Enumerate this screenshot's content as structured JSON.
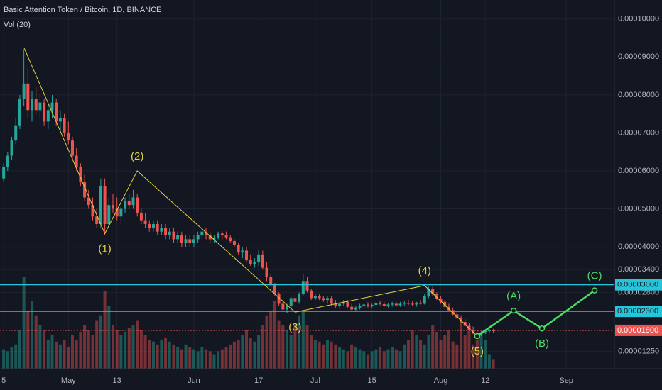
{
  "chart_data": {
    "type": "candlestick",
    "title": "Basic Attention Token / Bitcoin, 1D, BINANCE",
    "subtitle": "Vol (20)",
    "up_color": "#26a69a",
    "down_color": "#ef5350",
    "xlim": [
      -0.9,
      150.9
    ],
    "ylim": [
      7.9e-06,
      0.000105
    ],
    "grid": true,
    "xticks": [
      {
        "value": 0,
        "label": "5"
      },
      {
        "value": 16,
        "label": "May"
      },
      {
        "value": 28,
        "label": "13"
      },
      {
        "value": 47,
        "label": "Jun"
      },
      {
        "value": 63,
        "label": "17"
      },
      {
        "value": 77,
        "label": "Jul"
      },
      {
        "value": 91,
        "label": "15"
      },
      {
        "value": 108,
        "label": "Aug"
      },
      {
        "value": 119,
        "label": "12"
      },
      {
        "value": 139,
        "label": "Sep"
      }
    ],
    "yticks": [
      {
        "value": 0.0001,
        "label": "0.00010000"
      },
      {
        "value": 9e-05,
        "label": "0.00009000"
      },
      {
        "value": 8e-05,
        "label": "0.00008000"
      },
      {
        "value": 7e-05,
        "label": "0.00007000"
      },
      {
        "value": 6e-05,
        "label": "0.00006000"
      },
      {
        "value": 5e-05,
        "label": "0.00005000"
      },
      {
        "value": 4e-05,
        "label": "0.00004000"
      },
      {
        "value": 3.4e-05,
        "label": "0.00003400"
      },
      {
        "value": 2.8e-05,
        "label": "0.00002800"
      },
      {
        "value": 1.25e-05,
        "label": "0.00001250"
      }
    ],
    "hlines": [
      {
        "value": 3e-05,
        "label": "0.00003000",
        "color": "#26c6da",
        "dashed": false
      },
      {
        "value": 2.3e-05,
        "label": "0.00002300",
        "color": "#26c6da",
        "dashed": false
      },
      {
        "value": 1.8e-05,
        "label": "0.00001800",
        "color": "#ef5350",
        "dashed": true
      }
    ],
    "candles": [
      [
        5.8e-05,
        6.2e-05,
        5.7e-05,
        6.1e-05
      ],
      [
        6.1e-05,
        6.5e-05,
        6e-05,
        6.4e-05
      ],
      [
        6.4e-05,
        6.9e-05,
        6.3e-05,
        6.8e-05
      ],
      [
        6.8e-05,
        7.4e-05,
        6.7e-05,
        7.2e-05
      ],
      [
        7.2e-05,
        8e-05,
        7.1e-05,
        7.9e-05
      ],
      [
        7.9e-05,
        9.2e-05,
        7.7e-05,
        8.3e-05
      ],
      [
        8.3e-05,
        8.7e-05,
        7.4e-05,
        7.6e-05
      ],
      [
        7.6e-05,
        8.1e-05,
        7.3e-05,
        7.9e-05
      ],
      [
        7.9e-05,
        8.2e-05,
        7.5e-05,
        7.6e-05
      ],
      [
        7.6e-05,
        8e-05,
        7.4e-05,
        7.8e-05
      ],
      [
        7.8e-05,
        7.9e-05,
        7.2e-05,
        7.3e-05
      ],
      [
        7.3e-05,
        7.8e-05,
        7.1e-05,
        7.6e-05
      ],
      [
        7.6e-05,
        8e-05,
        7.4e-05,
        7.8e-05
      ],
      [
        7.8e-05,
        7.9e-05,
        7.2e-05,
        7.3e-05
      ],
      [
        7.3e-05,
        7.6e-05,
        7e-05,
        7.4e-05
      ],
      [
        7.4e-05,
        7.5e-05,
        6.9e-05,
        7e-05
      ],
      [
        7e-05,
        7.3e-05,
        6.7e-05,
        6.8e-05
      ],
      [
        6.8e-05,
        6.9e-05,
        6.3e-05,
        6.4e-05
      ],
      [
        6.4e-05,
        6.6e-05,
        6e-05,
        6.1e-05
      ],
      [
        6.1e-05,
        6.2e-05,
        5.6e-05,
        5.7e-05
      ],
      [
        5.7e-05,
        5.9e-05,
        5.2e-05,
        5.3e-05
      ],
      [
        5.3e-05,
        5.5e-05,
        5e-05,
        5.1e-05
      ],
      [
        5.1e-05,
        5.3e-05,
        4.7e-05,
        4.8e-05
      ],
      [
        4.8e-05,
        5e-05,
        4.5e-05,
        4.6e-05
      ],
      [
        4.6e-05,
        5.8e-05,
        4.5e-05,
        5.6e-05
      ],
      [
        5.6e-05,
        5.8e-05,
        4.3e-05,
        4.6e-05
      ],
      [
        4.6e-05,
        5.3e-05,
        4.5e-05,
        5.1e-05
      ],
      [
        5.1e-05,
        5.4e-05,
        4.9e-05,
        5e-05
      ],
      [
        5e-05,
        5.3e-05,
        4.7e-05,
        4.8e-05
      ],
      [
        4.8e-05,
        5.1e-05,
        4.6e-05,
        5e-05
      ],
      [
        5e-05,
        5.3e-05,
        4.9e-05,
        5.2e-05
      ],
      [
        5.2e-05,
        5.4e-05,
        5e-05,
        5.1e-05
      ],
      [
        5.1e-05,
        5.5e-05,
        5e-05,
        5.3e-05
      ],
      [
        5.3e-05,
        5.4e-05,
        4.8e-05,
        4.9e-05
      ],
      [
        4.9e-05,
        5e-05,
        4.6e-05,
        4.7e-05
      ],
      [
        4.7e-05,
        4.9e-05,
        4.5e-05,
        4.6e-05
      ],
      [
        4.6e-05,
        4.7e-05,
        4.4e-05,
        4.5e-05
      ],
      [
        4.5e-05,
        4.7e-05,
        4.4e-05,
        4.6e-05
      ],
      [
        4.6e-05,
        4.7e-05,
        4.3e-05,
        4.4e-05
      ],
      [
        4.4e-05,
        4.6e-05,
        4.3e-05,
        4.5e-05
      ],
      [
        4.5e-05,
        4.6e-05,
        4.2e-05,
        4.3e-05
      ],
      [
        4.3e-05,
        4.5e-05,
        4.2e-05,
        4.4e-05
      ],
      [
        4.4e-05,
        4.5e-05,
        4.1e-05,
        4.2e-05
      ],
      [
        4.2e-05,
        4.4e-05,
        4.1e-05,
        4.3e-05
      ],
      [
        4.3e-05,
        4.4e-05,
        4e-05,
        4.1e-05
      ],
      [
        4.1e-05,
        4.3e-05,
        4e-05,
        4.2e-05
      ],
      [
        4.2e-05,
        4.3e-05,
        4e-05,
        4.1e-05
      ],
      [
        4.1e-05,
        4.3e-05,
        4e-05,
        4.2e-05
      ],
      [
        4.2e-05,
        4.4e-05,
        4.1e-05,
        4.3e-05
      ],
      [
        4.3e-05,
        4.5e-05,
        4.2e-05,
        4.4e-05
      ],
      [
        4.4e-05,
        4.5e-05,
        4.2e-05,
        4.3e-05
      ],
      [
        4.3e-05,
        4.4e-05,
        4.1e-05,
        4.2e-05
      ],
      [
        4.2e-05,
        4.3e-05,
        4.1e-05,
        4.25e-05
      ],
      [
        4.25e-05,
        4.4e-05,
        4.2e-05,
        4.35e-05
      ],
      [
        4.35e-05,
        4.4e-05,
        4.2e-05,
        4.3e-05
      ],
      [
        4.3e-05,
        4.4e-05,
        4.2e-05,
        4.25e-05
      ],
      [
        4.25e-05,
        4.3e-05,
        4.1e-05,
        4.15e-05
      ],
      [
        4.15e-05,
        4.2e-05,
        4e-05,
        4.05e-05
      ],
      [
        4.05e-05,
        4.1e-05,
        3.8e-05,
        3.85e-05
      ],
      [
        3.85e-05,
        4e-05,
        3.7e-05,
        3.9e-05
      ],
      [
        3.9e-05,
        4e-05,
        3.6e-05,
        3.65e-05
      ],
      [
        3.65e-05,
        3.8e-05,
        3.5e-05,
        3.55e-05
      ],
      [
        3.55e-05,
        3.7e-05,
        3.45e-05,
        3.6e-05
      ],
      [
        3.6e-05,
        3.9e-05,
        3.5e-05,
        3.8e-05
      ],
      [
        3.8e-05,
        3.9e-05,
        3.4e-05,
        3.45e-05
      ],
      [
        3.45e-05,
        3.6e-05,
        3.1e-05,
        3.2e-05
      ],
      [
        3.2e-05,
        3.3e-05,
        2.95e-05,
        3e-05
      ],
      [
        3e-05,
        3.05e-05,
        2.7e-05,
        2.75e-05
      ],
      [
        2.75e-05,
        2.8e-05,
        2.45e-05,
        2.5e-05
      ],
      [
        2.5e-05,
        2.6e-05,
        2.3e-05,
        2.35e-05
      ],
      [
        2.35e-05,
        2.5e-05,
        2.25e-05,
        2.45e-05
      ],
      [
        2.45e-05,
        2.7e-05,
        2.4e-05,
        2.65e-05
      ],
      [
        2.65e-05,
        2.75e-05,
        2.5e-05,
        2.55e-05
      ],
      [
        2.55e-05,
        2.8e-05,
        2.5e-05,
        2.75e-05
      ],
      [
        2.75e-05,
        3.3e-05,
        2.7e-05,
        3.1e-05
      ],
      [
        3.1e-05,
        3.2e-05,
        2.8e-05,
        2.85e-05
      ],
      [
        2.85e-05,
        2.9e-05,
        2.6e-05,
        2.65e-05
      ],
      [
        2.65e-05,
        2.75e-05,
        2.6e-05,
        2.7e-05
      ],
      [
        2.7e-05,
        2.75e-05,
        2.6e-05,
        2.65e-05
      ],
      [
        2.65e-05,
        2.7e-05,
        2.55e-05,
        2.6e-05
      ],
      [
        2.6e-05,
        2.7e-05,
        2.5e-05,
        2.65e-05
      ],
      [
        2.65e-05,
        2.7e-05,
        2.45e-05,
        2.5e-05
      ],
      [
        2.5e-05,
        2.6e-05,
        2.4e-05,
        2.45e-05
      ],
      [
        2.45e-05,
        2.55e-05,
        2.4e-05,
        2.5e-05
      ],
      [
        2.5e-05,
        2.6e-05,
        2.45e-05,
        2.55e-05
      ],
      [
        2.55e-05,
        2.6e-05,
        2.4e-05,
        2.42e-05
      ],
      [
        2.42e-05,
        2.5e-05,
        2.3e-05,
        2.35e-05
      ],
      [
        2.35e-05,
        2.45e-05,
        2.3e-05,
        2.4e-05
      ],
      [
        2.4e-05,
        2.5e-05,
        2.35e-05,
        2.45e-05
      ],
      [
        2.45e-05,
        2.5e-05,
        2.4e-05,
        2.48e-05
      ],
      [
        2.48e-05,
        2.54e-05,
        2.4e-05,
        2.44e-05
      ],
      [
        2.44e-05,
        2.5e-05,
        2.38e-05,
        2.47e-05
      ],
      [
        2.47e-05,
        2.56e-05,
        2.43e-05,
        2.52e-05
      ],
      [
        2.52e-05,
        2.58e-05,
        2.46e-05,
        2.49e-05
      ],
      [
        2.49e-05,
        2.55e-05,
        2.42e-05,
        2.45e-05
      ],
      [
        2.45e-05,
        2.52e-05,
        2.4e-05,
        2.48e-05
      ],
      [
        2.48e-05,
        2.55e-05,
        2.42e-05,
        2.5e-05
      ],
      [
        2.5e-05,
        2.55e-05,
        2.44e-05,
        2.46e-05
      ],
      [
        2.46e-05,
        2.55e-05,
        2.42e-05,
        2.5e-05
      ],
      [
        2.5e-05,
        2.58e-05,
        2.45e-05,
        2.52e-05
      ],
      [
        2.52e-05,
        2.6e-05,
        2.46e-05,
        2.5e-05
      ],
      [
        2.5e-05,
        2.56e-05,
        2.44e-05,
        2.48e-05
      ],
      [
        2.48e-05,
        2.55e-05,
        2.42e-05,
        2.53e-05
      ],
      [
        2.53e-05,
        2.6e-05,
        2.48e-05,
        2.5e-05
      ],
      [
        2.5e-05,
        2.75e-05,
        2.48e-05,
        2.7e-05
      ],
      [
        2.7e-05,
        2.95e-05,
        2.65e-05,
        2.9e-05
      ],
      [
        2.9e-05,
        2.95e-05,
        2.7e-05,
        2.75e-05
      ],
      [
        2.75e-05,
        2.8e-05,
        2.6e-05,
        2.62e-05
      ],
      [
        2.62e-05,
        2.7e-05,
        2.5e-05,
        2.55e-05
      ],
      [
        2.55e-05,
        2.6e-05,
        2.4e-05,
        2.42e-05
      ],
      [
        2.42e-05,
        2.5e-05,
        2.3e-05,
        2.33e-05
      ],
      [
        2.33e-05,
        2.4e-05,
        2.2e-05,
        2.22e-05
      ],
      [
        2.22e-05,
        2.3e-05,
        2.1e-05,
        2.12e-05
      ],
      [
        2.12e-05,
        2.2e-05,
        2e-05,
        2.02e-05
      ],
      [
        2.02e-05,
        2.1e-05,
        1.9e-05,
        1.92e-05
      ],
      [
        1.92e-05,
        2e-05,
        1.8e-05,
        1.82e-05
      ],
      [
        1.82e-05,
        1.9e-05,
        1.7e-05,
        1.72e-05
      ],
      [
        1.72e-05,
        1.8e-05,
        1.64e-05,
        1.7e-05
      ],
      [
        1.7e-05,
        1.78e-05,
        1.65e-05,
        1.75e-05
      ],
      [
        1.75e-05,
        1.82e-05,
        1.7e-05,
        1.78e-05
      ],
      [
        1.78e-05,
        1.85e-05,
        1.72e-05,
        1.8e-05
      ],
      [
        1.8e-05,
        1.84e-05,
        1.74e-05,
        1.78e-05
      ]
    ],
    "volume": [
      20,
      18,
      22,
      25,
      40,
      95,
      60,
      70,
      55,
      45,
      40,
      30,
      35,
      28,
      25,
      30,
      22,
      35,
      30,
      38,
      45,
      40,
      35,
      50,
      55,
      80,
      65,
      45,
      40,
      35,
      38,
      42,
      45,
      50,
      40,
      35,
      30,
      28,
      25,
      30,
      32,
      28,
      25,
      22,
      20,
      25,
      22,
      20,
      18,
      22,
      20,
      18,
      15,
      18,
      20,
      22,
      25,
      28,
      30,
      35,
      40,
      32,
      28,
      35,
      45,
      55,
      60,
      70,
      50,
      45,
      40,
      35,
      45,
      55,
      60,
      45,
      35,
      30,
      28,
      25,
      30,
      28,
      25,
      22,
      20,
      18,
      25,
      22,
      20,
      18,
      15,
      18,
      20,
      22,
      18,
      20,
      22,
      20,
      18,
      25,
      30,
      40,
      35,
      30,
      25,
      35,
      45,
      38,
      30,
      35,
      40,
      28,
      25,
      50,
      35,
      40,
      25,
      30,
      35,
      30,
      15,
      10
    ],
    "waves": [
      {
        "color": "#e8d13d",
        "x": [
          5,
          25,
          33,
          72,
          104,
          117
        ],
        "values": [
          9.25e-05,
          4.35e-05,
          6e-05,
          2.28e-05,
          2.98e-05,
          1.65e-05
        ],
        "labels": [
          null,
          "(1)",
          "(2)",
          "(3)",
          "(4)",
          "(5)"
        ]
      },
      {
        "color": "#4cd964",
        "x": [
          117,
          126,
          133,
          146
        ],
        "values": [
          1.65e-05,
          2.32e-05,
          1.85e-05,
          2.85e-05
        ],
        "labels": [
          null,
          "(A)",
          "(B)",
          "(C)"
        ]
      }
    ]
  }
}
